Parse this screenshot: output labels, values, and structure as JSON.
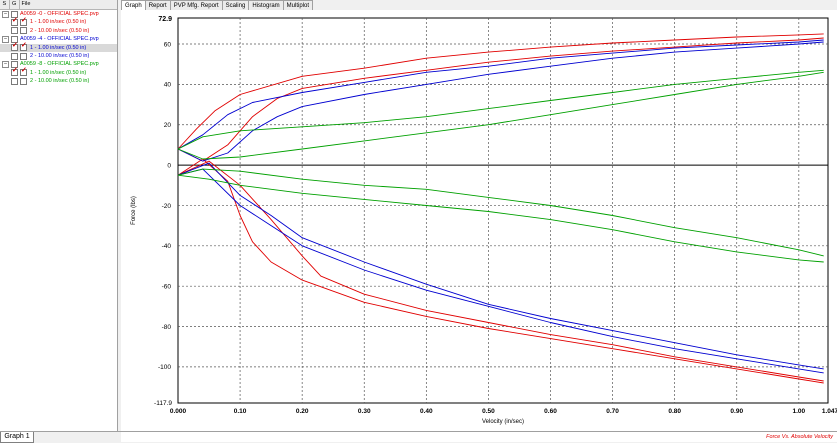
{
  "tree": {
    "headers": [
      "S",
      "G",
      "File"
    ],
    "items": [
      {
        "label": "A0059 -0 - OFFICIAL SPEC.pvp",
        "color": "#e00000",
        "level": 0,
        "expander": "–",
        "g_checked": false
      },
      {
        "label": "1 - 1.00 in/sec (0.50 in)",
        "color": "#e00000",
        "level": 1,
        "s_checked": true,
        "g_checked": true
      },
      {
        "label": "2 - 10.00 in/sec (0.50 in)",
        "color": "#e00000",
        "level": 1,
        "s_checked": false,
        "g_checked": false
      },
      {
        "label": "A0059 -4 - OFFICIAL SPEC.pvp",
        "color": "#0000d0",
        "level": 0,
        "expander": "–",
        "g_checked": false
      },
      {
        "label": "1 - 1.00 in/sec (0.50 in)",
        "color": "#0000d0",
        "level": 1,
        "s_checked": true,
        "g_checked": true,
        "selected": true
      },
      {
        "label": "2 - 10.00 in/sec (0.50 in)",
        "color": "#0000d0",
        "level": 1,
        "s_checked": false,
        "g_checked": false
      },
      {
        "label": "A0059 -8 - OFFICIAL SPEC.pvp",
        "color": "#00a000",
        "level": 0,
        "expander": "–",
        "g_checked": false
      },
      {
        "label": "1 - 1.00 in/sec (0.50 in)",
        "color": "#00a000",
        "level": 1,
        "s_checked": true,
        "g_checked": true
      },
      {
        "label": "2 - 10.00 in/sec (0.50 in)",
        "color": "#00a000",
        "level": 1,
        "s_checked": false,
        "g_checked": false
      }
    ]
  },
  "tabs": [
    "Graph",
    "Report",
    "PVP Mfg. Report",
    "Scaling",
    "Histogram",
    "Multiplot"
  ],
  "active_tab": "Graph",
  "bottom_tab": "Graph 1",
  "chart_title": "Force Vs. Absolute Velocity",
  "chart_data": {
    "type": "line",
    "xlabel": "Velocity (in/sec)",
    "ylabel": "Force (lbs)",
    "xlim": [
      0.0,
      1.047
    ],
    "ylim": [
      -117.9,
      72.9
    ],
    "x_min_label": "0.000",
    "x_max_label": "1.047",
    "y_max_label": "72.9",
    "y_min_label": "-117.9",
    "x_ticks": [
      "0.10",
      "0.20",
      "0.30",
      "0.40",
      "0.50",
      "0.60",
      "0.70",
      "0.80",
      "0.90",
      "1.00"
    ],
    "y_ticks": [
      "60",
      "40",
      "20",
      "0",
      "-20",
      "-40",
      "-60",
      "-80",
      "-100"
    ],
    "grid": true,
    "series": [
      {
        "color": "#e00000",
        "points": [
          [
            0.0,
            8
          ],
          [
            0.03,
            18
          ],
          [
            0.06,
            27
          ],
          [
            0.1,
            35
          ],
          [
            0.2,
            44
          ],
          [
            0.3,
            48
          ],
          [
            0.4,
            53
          ],
          [
            0.5,
            56
          ],
          [
            0.6,
            58.5
          ],
          [
            0.7,
            60.5
          ],
          [
            0.8,
            62
          ],
          [
            0.9,
            63.5
          ],
          [
            1.0,
            64.5
          ],
          [
            1.04,
            65
          ]
        ]
      },
      {
        "color": "#e00000",
        "points": [
          [
            0.0,
            8
          ],
          [
            0.04,
            2
          ],
          [
            0.08,
            10
          ],
          [
            0.12,
            24
          ],
          [
            0.16,
            33
          ],
          [
            0.2,
            38
          ],
          [
            0.3,
            43
          ],
          [
            0.4,
            47
          ],
          [
            0.5,
            51
          ],
          [
            0.6,
            54
          ],
          [
            0.7,
            56.5
          ],
          [
            0.8,
            58.5
          ],
          [
            0.9,
            60.5
          ],
          [
            1.0,
            62
          ],
          [
            1.04,
            63
          ]
        ]
      },
      {
        "color": "#e00000",
        "points": [
          [
            0.0,
            -5
          ],
          [
            0.04,
            3
          ],
          [
            0.08,
            -8
          ],
          [
            0.1,
            -25
          ],
          [
            0.12,
            -38
          ],
          [
            0.15,
            -48
          ],
          [
            0.2,
            -57
          ],
          [
            0.3,
            -68
          ],
          [
            0.4,
            -75
          ],
          [
            0.5,
            -81
          ],
          [
            0.6,
            -86
          ],
          [
            0.7,
            -91
          ],
          [
            0.8,
            -96
          ],
          [
            0.9,
            -101
          ],
          [
            1.0,
            -106
          ],
          [
            1.04,
            -108
          ]
        ]
      },
      {
        "color": "#e00000",
        "points": [
          [
            0.0,
            -5
          ],
          [
            0.05,
            2
          ],
          [
            0.1,
            -10
          ],
          [
            0.15,
            -27
          ],
          [
            0.2,
            -45
          ],
          [
            0.23,
            -55
          ],
          [
            0.3,
            -64
          ],
          [
            0.4,
            -72
          ],
          [
            0.5,
            -78
          ],
          [
            0.6,
            -84
          ],
          [
            0.7,
            -89
          ],
          [
            0.8,
            -95
          ],
          [
            0.9,
            -100
          ],
          [
            1.0,
            -105
          ],
          [
            1.04,
            -107
          ]
        ]
      },
      {
        "color": "#0000d0",
        "points": [
          [
            0.0,
            8
          ],
          [
            0.04,
            15
          ],
          [
            0.08,
            25
          ],
          [
            0.12,
            31
          ],
          [
            0.2,
            36
          ],
          [
            0.3,
            41
          ],
          [
            0.4,
            46
          ],
          [
            0.5,
            49
          ],
          [
            0.6,
            53
          ],
          [
            0.7,
            55.5
          ],
          [
            0.8,
            58
          ],
          [
            0.9,
            59.5
          ],
          [
            1.0,
            61
          ],
          [
            1.04,
            62
          ]
        ]
      },
      {
        "color": "#0000d0",
        "points": [
          [
            0.0,
            8
          ],
          [
            0.04,
            2
          ],
          [
            0.08,
            6
          ],
          [
            0.12,
            17
          ],
          [
            0.16,
            24
          ],
          [
            0.2,
            29
          ],
          [
            0.3,
            35
          ],
          [
            0.4,
            40
          ],
          [
            0.5,
            45
          ],
          [
            0.6,
            49
          ],
          [
            0.7,
            53
          ],
          [
            0.8,
            56
          ],
          [
            0.9,
            58
          ],
          [
            1.0,
            60
          ],
          [
            1.04,
            61
          ]
        ]
      },
      {
        "color": "#0000d0",
        "points": [
          [
            0.0,
            -5
          ],
          [
            0.04,
            -2
          ],
          [
            0.1,
            -20
          ],
          [
            0.15,
            -30
          ],
          [
            0.2,
            -40
          ],
          [
            0.3,
            -52
          ],
          [
            0.4,
            -62
          ],
          [
            0.5,
            -70
          ],
          [
            0.6,
            -78
          ],
          [
            0.7,
            -85
          ],
          [
            0.8,
            -91
          ],
          [
            0.9,
            -96
          ],
          [
            1.0,
            -101
          ],
          [
            1.04,
            -103
          ]
        ]
      },
      {
        "color": "#0000d0",
        "points": [
          [
            0.0,
            -5
          ],
          [
            0.05,
            1
          ],
          [
            0.1,
            -15
          ],
          [
            0.15,
            -25
          ],
          [
            0.2,
            -36
          ],
          [
            0.3,
            -48
          ],
          [
            0.4,
            -59
          ],
          [
            0.5,
            -69
          ],
          [
            0.6,
            -76
          ],
          [
            0.7,
            -82
          ],
          [
            0.8,
            -88
          ],
          [
            0.9,
            -94
          ],
          [
            1.0,
            -99
          ],
          [
            1.04,
            -101
          ]
        ]
      },
      {
        "color": "#00a000",
        "points": [
          [
            0.0,
            8
          ],
          [
            0.04,
            14
          ],
          [
            0.1,
            17
          ],
          [
            0.2,
            19
          ],
          [
            0.3,
            21
          ],
          [
            0.4,
            24
          ],
          [
            0.5,
            28
          ],
          [
            0.6,
            32
          ],
          [
            0.7,
            36
          ],
          [
            0.8,
            40
          ],
          [
            0.9,
            43
          ],
          [
            1.0,
            46
          ],
          [
            1.04,
            47
          ]
        ]
      },
      {
        "color": "#00a000",
        "points": [
          [
            0.0,
            8
          ],
          [
            0.04,
            3
          ],
          [
            0.1,
            4
          ],
          [
            0.2,
            8
          ],
          [
            0.3,
            12
          ],
          [
            0.4,
            16
          ],
          [
            0.5,
            20
          ],
          [
            0.6,
            25
          ],
          [
            0.7,
            30
          ],
          [
            0.8,
            35
          ],
          [
            0.9,
            40
          ],
          [
            1.0,
            44
          ],
          [
            1.04,
            46
          ]
        ]
      },
      {
        "color": "#00a000",
        "points": [
          [
            0.0,
            -5
          ],
          [
            0.04,
            -2
          ],
          [
            0.1,
            -3
          ],
          [
            0.2,
            -7
          ],
          [
            0.3,
            -10
          ],
          [
            0.4,
            -12
          ],
          [
            0.5,
            -16
          ],
          [
            0.6,
            -20
          ],
          [
            0.7,
            -25
          ],
          [
            0.8,
            -31
          ],
          [
            0.9,
            -36
          ],
          [
            1.0,
            -42
          ],
          [
            1.04,
            -45
          ]
        ]
      },
      {
        "color": "#00a000",
        "points": [
          [
            0.0,
            -5
          ],
          [
            0.05,
            -7
          ],
          [
            0.1,
            -10
          ],
          [
            0.2,
            -14
          ],
          [
            0.3,
            -17
          ],
          [
            0.4,
            -20
          ],
          [
            0.5,
            -23
          ],
          [
            0.6,
            -27
          ],
          [
            0.7,
            -32
          ],
          [
            0.8,
            -38
          ],
          [
            0.9,
            -43
          ],
          [
            1.0,
            -47
          ],
          [
            1.04,
            -48
          ]
        ]
      }
    ]
  }
}
